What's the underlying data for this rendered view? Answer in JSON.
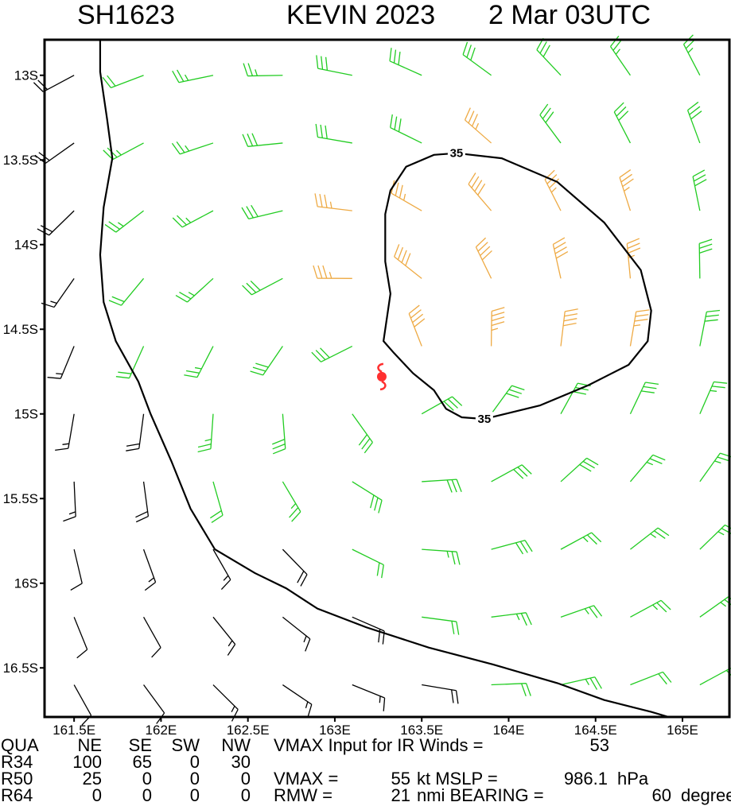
{
  "header": {
    "id": "SH1623",
    "storm": "KEVIN 2023",
    "time": "2 Mar 03UTC"
  },
  "chart_data": {
    "type": "wind-barb-map",
    "xlim": [
      161.33,
      165.27
    ],
    "ylim": [
      -16.79,
      -12.79
    ],
    "xticks": [
      {
        "value": 161.5,
        "label": "161.5E"
      },
      {
        "value": 162,
        "label": "162E"
      },
      {
        "value": 162.5,
        "label": "162.5E"
      },
      {
        "value": 163,
        "label": "163E"
      },
      {
        "value": 163.5,
        "label": "163.5E"
      },
      {
        "value": 164,
        "label": "164E"
      },
      {
        "value": 164.5,
        "label": "164.5E"
      },
      {
        "value": 165,
        "label": "165E"
      }
    ],
    "yticks": [
      {
        "value": -13,
        "label": "13S"
      },
      {
        "value": -13.5,
        "label": "13.5S"
      },
      {
        "value": -14,
        "label": "14S"
      },
      {
        "value": -14.5,
        "label": "14.5S"
      },
      {
        "value": -15,
        "label": "15S"
      },
      {
        "value": -15.5,
        "label": "15.5S"
      },
      {
        "value": -16,
        "label": "16S"
      },
      {
        "value": -16.5,
        "label": "16.5S"
      }
    ],
    "center": {
      "x": 163.27,
      "y": -14.78,
      "color": "#ff3030"
    },
    "x": [
      161.5,
      161.9,
      162.3,
      162.7,
      163.1,
      163.5,
      163.9,
      164.3,
      164.7,
      165.1
    ],
    "y": [
      -13,
      -13.4,
      -13.8,
      -14.2,
      -14.6,
      -15,
      -15.4,
      -15.8,
      -16.2,
      -16.6
    ],
    "speeds": [
      [
        20,
        24,
        27,
        29,
        30,
        31,
        31,
        30,
        29,
        28
      ],
      [
        21,
        25,
        28,
        31,
        33,
        34,
        36,
        34,
        32,
        30
      ],
      [
        20,
        25,
        29,
        32,
        35,
        38,
        40,
        39,
        35,
        31
      ],
      [
        19,
        24,
        28,
        32,
        36,
        42,
        44,
        42,
        37,
        32
      ],
      [
        18,
        23,
        27,
        31,
        34,
        40,
        45,
        42,
        36,
        31
      ],
      [
        17,
        21,
        26,
        30,
        30,
        33,
        34,
        33,
        31,
        29
      ],
      [
        16,
        20,
        24,
        28,
        30,
        31,
        31,
        30,
        29,
        28
      ],
      [
        14,
        16,
        18,
        20,
        24,
        28,
        30,
        29,
        28,
        27
      ],
      [
        12,
        14,
        16,
        18,
        21,
        24,
        26,
        28,
        27,
        26
      ],
      [
        11,
        13,
        15,
        17,
        19,
        21,
        23,
        25,
        24,
        24
      ]
    ],
    "color_steps": [
      {
        "min": 0,
        "color": "#000000"
      },
      {
        "min": 22,
        "color": "#22cc22"
      },
      {
        "min": 35,
        "color": "#eeaa44"
      }
    ],
    "contours": [
      {
        "label": "35",
        "x": [
          163.7,
          163.96,
          164.28,
          164.55,
          164.76,
          164.82,
          164.8,
          164.69,
          164.46,
          164.18,
          163.86,
          163.73,
          163.64,
          163.57,
          163.45,
          163.34,
          163.28,
          163.3,
          163.32,
          163.29,
          163.29,
          163.32,
          163.41,
          163.57,
          163.7
        ],
        "y": [
          -13.46,
          -13.49,
          -13.63,
          -13.87,
          -14.15,
          -14.39,
          -14.57,
          -14.71,
          -14.83,
          -14.95,
          -15.03,
          -15.02,
          -14.97,
          -14.86,
          -14.76,
          -14.64,
          -14.57,
          -14.43,
          -14.29,
          -14.1,
          -13.82,
          -13.68,
          -13.54,
          -13.47,
          -13.46
        ]
      },
      {
        "x": [
          161.65,
          161.65,
          161.69,
          161.72,
          161.67,
          161.65,
          161.67,
          161.74,
          161.87,
          161.94,
          162.06,
          162.17,
          162.31,
          162.54,
          162.72,
          162.9,
          163.18,
          163.54,
          163.91,
          164.28,
          164.55,
          164.82,
          164.92
        ],
        "y": [
          -12.79,
          -12.98,
          -13.26,
          -13.49,
          -13.78,
          -14.06,
          -14.34,
          -14.57,
          -14.81,
          -15.0,
          -15.28,
          -15.56,
          -15.8,
          -15.94,
          -16.03,
          -16.15,
          -16.26,
          -16.38,
          -16.48,
          -16.59,
          -16.69,
          -16.76,
          -16.79
        ]
      }
    ]
  },
  "footer": {
    "rows": [
      [
        "QUA",
        "NE",
        "SE",
        "SW",
        "NW",
        "VMAX Input for IR Winds =",
        "53"
      ],
      [
        "R34",
        "100",
        "65",
        "0",
        "30"
      ],
      [
        "R50",
        "25",
        "0",
        "0",
        "0",
        "VMAX =",
        "55",
        "kt MSLP =",
        "986.1",
        "hPa"
      ],
      [
        "R64",
        "0",
        "0",
        "0",
        "0",
        "RMW =",
        "21",
        "nmi BEARING =",
        "60",
        "degrees"
      ]
    ]
  }
}
